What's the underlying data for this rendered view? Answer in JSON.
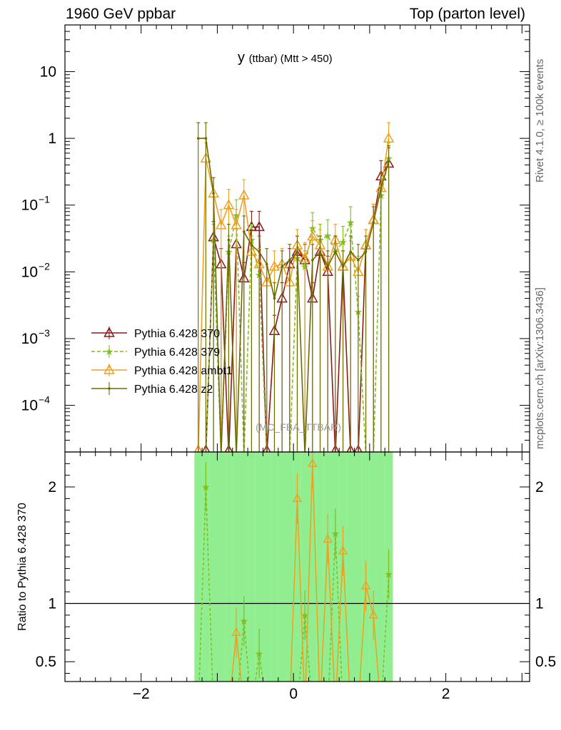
{
  "header": {
    "left": "1960 GeV ppbar",
    "right": "Top (parton level)"
  },
  "side": {
    "rivet": "Rivet 4.1.0, ≥ 100k events",
    "site": "mcplots.cern.ch [arXiv:1306.3436]"
  },
  "chart_data": {
    "type": "line",
    "title": "y",
    "title_suffix": "(ttbar) (Mtt > 450)",
    "watermark": "(MC_FBA_TTBAR)",
    "ratio_ylabel": "Ratio to Pythia 6.428 370",
    "log_y": true,
    "xlim": [
      -3.0,
      3.1
    ],
    "ylim": [
      2e-05,
      50
    ],
    "ratio_ylim": [
      0.33,
      2.3
    ],
    "x_ticks": [
      "−2",
      "0",
      "2"
    ],
    "y_ticks": [
      "10",
      "1",
      "10^{−1}",
      "10^{−2}",
      "10^{−3}",
      "10^{−4}"
    ],
    "ratio_ticks": [
      "2",
      "1",
      "0.5"
    ],
    "colors": {
      "370": "#8b1a1a",
      "379": "#7fbf1f",
      "ambt1": "#f0a020",
      "z2": "#6b6b00",
      "band_yellow": "#ffff80",
      "band_green": "#90ee90"
    },
    "x": [
      -1.25,
      -1.15,
      -1.05,
      -0.95,
      -0.85,
      -0.75,
      -0.65,
      -0.55,
      -0.45,
      -0.35,
      -0.25,
      -0.15,
      -0.05,
      0.05,
      0.15,
      0.25,
      0.35,
      0.45,
      0.55,
      0.65,
      0.75,
      0.85,
      0.95,
      1.05,
      1.15,
      1.25
    ],
    "series": [
      {
        "name": "Pythia 6.428 370",
        "values": [
          0,
          0,
          0.033,
          0.013,
          0,
          0.026,
          0.008,
          0.047,
          0.047,
          0,
          0.0013,
          0.004,
          0.013,
          0.02,
          0.015,
          0.004,
          0.02,
          0.01,
          0,
          0.012,
          0,
          0,
          0.025,
          0.06,
          0.27,
          0.42
        ]
      },
      {
        "name": "Pythia 6.428 379",
        "values": [
          0,
          0,
          0.03,
          0,
          0.02,
          0.07,
          0,
          0.03,
          0.009,
          0,
          0,
          0,
          0,
          0.016,
          0.012,
          0.045,
          0.03,
          0.035,
          0.02,
          0.028,
          0.055,
          0.0025,
          0,
          0,
          0.14,
          0.5
        ]
      },
      {
        "name": "Pythia 6.428 ambt1",
        "values": [
          0,
          0.5,
          0.15,
          0.05,
          0.1,
          0.05,
          0.14,
          0.02,
          0.013,
          0.007,
          0.012,
          0.013,
          0.007,
          0.025,
          0.016,
          0.034,
          0.025,
          0.012,
          0.03,
          0.012,
          0.017,
          0.01,
          0.025,
          0.06,
          0.18,
          1.0
        ]
      },
      {
        "name": "Pythia 6.428 z2",
        "values": [
          1.0,
          1.0,
          0.15,
          0,
          0.03,
          0,
          0.04,
          0.025,
          0.02,
          0.013,
          0.004,
          0.012,
          0.015,
          0.02,
          0,
          0.015,
          0.02,
          0.012,
          0.02,
          0.012,
          0.02,
          0.015,
          0.02,
          0.055,
          0.18,
          0.45
        ]
      }
    ],
    "ratio_series": [
      {
        "name": "Pythia 6.428 379",
        "values": [
          0,
          2.0,
          0,
          0,
          0,
          0,
          0.85,
          0,
          0.57,
          0,
          0,
          0,
          0,
          0,
          0.9,
          0,
          0,
          0,
          1.6,
          0,
          0,
          0,
          0,
          0,
          0,
          1.25
        ]
      },
      {
        "name": "Pythia 6.428 ambt1",
        "values": [
          0,
          0,
          0,
          0,
          0,
          0.75,
          0,
          0,
          0,
          0,
          0,
          0,
          0,
          1.9,
          0,
          2.2,
          0,
          1.55,
          0,
          1.45,
          0,
          0,
          1.15,
          0.9,
          0,
          0
        ]
      }
    ],
    "band_yellow": [
      2.3,
      2.3,
      2.3,
      2.3,
      2.3,
      2.3,
      2.3,
      2.3,
      2.3,
      2.3,
      2.3,
      2.3,
      2.3,
      2.3,
      2.3,
      2.3,
      2.3,
      2.3,
      2.3,
      2.3,
      2.3,
      2.3,
      2.3,
      2.3,
      2.3,
      2.3
    ],
    "band_green": [
      2.3,
      2.3,
      2.3,
      2.3,
      2.3,
      2.3,
      2.3,
      2.3,
      2.3,
      2.3,
      2.3,
      2.3,
      2.3,
      2.3,
      2.3,
      2.3,
      2.3,
      2.3,
      2.3,
      2.3,
      2.3,
      2.3,
      2.3,
      2.3,
      2.3,
      2.3
    ]
  }
}
